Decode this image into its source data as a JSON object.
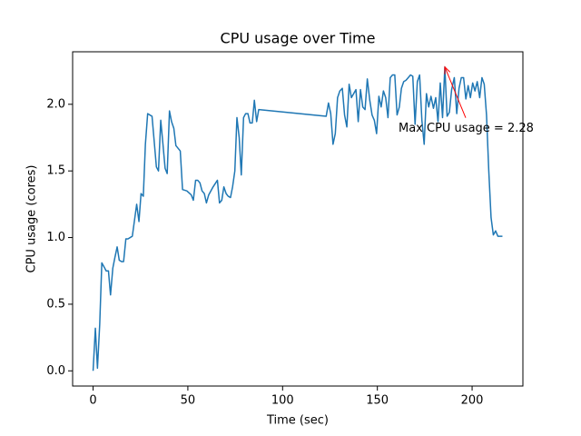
{
  "chart_data": {
    "type": "line",
    "title": "CPU usage over Time",
    "xlabel": "Time (sec)",
    "ylabel": "CPU usage (cores)",
    "color": "#1f77b4",
    "x": [
      0,
      1.2,
      2.3,
      3.5,
      4.6,
      5.8,
      6.9,
      8.1,
      9.2,
      10.4,
      11.5,
      12.7,
      13.8,
      15,
      16.1,
      17.3,
      18.4,
      20.7,
      23,
      24.2,
      25.3,
      26.5,
      27.6,
      28.8,
      29.9,
      31.1,
      32.2,
      33.4,
      34.5,
      35.7,
      36.8,
      38,
      39.1,
      40.3,
      41.4,
      42.6,
      43.7,
      46,
      47.2,
      49.5,
      51.8,
      52.9,
      54.1,
      55.2,
      56.4,
      57.5,
      58.7,
      59.8,
      61,
      63.3,
      65.6,
      66.7,
      67.9,
      69,
      70.2,
      71.3,
      72.5,
      73.6,
      74.8,
      75.9,
      77.1,
      78.2,
      79.4,
      80.5,
      81.7,
      82.8,
      84,
      85.1,
      86.3,
      87.4,
      123,
      124.2,
      125.4,
      126.6,
      127.8,
      129,
      130.2,
      131.5,
      132.7,
      133.9,
      135.1,
      136.3,
      137.5,
      138.7,
      139.9,
      141.1,
      142.3,
      143.5,
      144.7,
      146,
      147.2,
      148.4,
      149.6,
      150.8,
      152,
      153.2,
      154.4,
      155.6,
      156.8,
      158,
      159.2,
      160.4,
      161.6,
      162.7,
      163.9,
      165.1,
      166.3,
      167.5,
      168.7,
      169.9,
      171.1,
      172.3,
      173.5,
      174.7,
      175.9,
      177.1,
      178.3,
      179.6,
      180.8,
      182,
      183.2,
      184.4,
      185.6,
      186.8,
      188,
      189.2,
      190.6,
      191.9,
      193.1,
      194.3,
      195.5,
      196.7,
      197.9,
      199.1,
      200.3,
      201.5,
      202.7,
      204,
      205.2,
      206.4,
      207.6,
      208.8,
      210,
      211.2,
      212.4,
      213.6,
      216
    ],
    "values": [
      0.0,
      0.32,
      0.02,
      0.35,
      0.81,
      0.78,
      0.75,
      0.75,
      0.57,
      0.77,
      0.85,
      0.93,
      0.83,
      0.82,
      0.82,
      0.99,
      0.99,
      1.01,
      1.25,
      1.12,
      1.33,
      1.31,
      1.7,
      1.93,
      1.92,
      1.91,
      1.73,
      1.53,
      1.5,
      1.88,
      1.71,
      1.52,
      1.48,
      1.95,
      1.87,
      1.82,
      1.69,
      1.65,
      1.36,
      1.35,
      1.32,
      1.28,
      1.43,
      1.43,
      1.41,
      1.35,
      1.33,
      1.26,
      1.32,
      1.38,
      1.43,
      1.26,
      1.28,
      1.38,
      1.33,
      1.31,
      1.3,
      1.38,
      1.5,
      1.9,
      1.75,
      1.47,
      1.9,
      1.93,
      1.93,
      1.86,
      1.86,
      2.03,
      1.87,
      1.96,
      1.91,
      2.01,
      1.93,
      1.7,
      1.78,
      2.05,
      2.1,
      2.12,
      1.92,
      1.83,
      2.15,
      2.05,
      2.08,
      2.11,
      1.87,
      2.11,
      1.98,
      1.96,
      2.19,
      2.03,
      1.92,
      1.88,
      1.78,
      2.06,
      1.98,
      2.1,
      2.05,
      1.9,
      2.2,
      2.22,
      2.22,
      1.92,
      1.98,
      2.12,
      2.17,
      2.18,
      2.2,
      2.22,
      2.21,
      1.85,
      2.17,
      2.22,
      1.88,
      1.7,
      2.08,
      1.98,
      2.06,
      1.97,
      2.05,
      1.87,
      2.16,
      1.9,
      2.28,
      1.91,
      1.94,
      2.11,
      2.2,
      1.93,
      2.12,
      2.2,
      2.2,
      2.04,
      2.14,
      2.05,
      2.16,
      2.1,
      2.17,
      2.05,
      2.2,
      2.15,
      1.92,
      1.5,
      1.15,
      1.02,
      1.05,
      1.01,
      1.01
    ],
    "xlim": [
      -10.8,
      226.8
    ],
    "xticks": [
      0,
      50,
      100,
      150,
      200
    ],
    "ylim": [
      -0.114,
      2.394
    ],
    "yticks": [
      {
        "value": 0,
        "label": "0.0"
      },
      0.5,
      {
        "value": 1,
        "label": "1.0"
      },
      1.5,
      {
        "value": 2,
        "label": "2.0"
      }
    ],
    "annotation": {
      "text": "Max CPU usage = 2.28",
      "x": 185.6,
      "y": 2.28,
      "color": "red"
    }
  }
}
